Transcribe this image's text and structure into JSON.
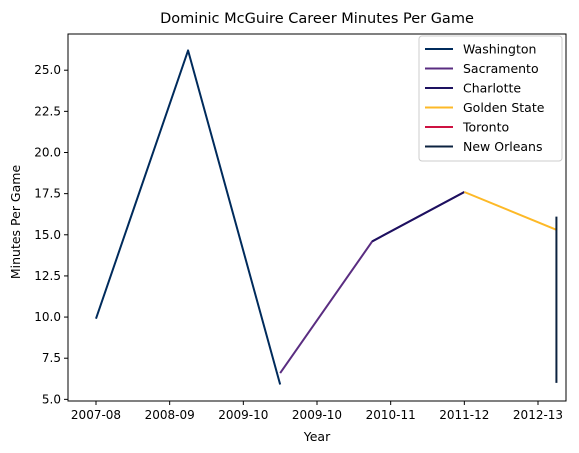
{
  "chart_data": {
    "type": "line",
    "title": "Dominic McGuire Career Minutes Per Game",
    "xlabel": "Year",
    "ylabel": "Minutes Per Game",
    "x_ticks": [
      {
        "label": "2007-08",
        "value": 0
      },
      {
        "label": "2008-09",
        "value": 1
      },
      {
        "label": "2009-10",
        "value": 2
      },
      {
        "label": "2009-10",
        "value": 3
      },
      {
        "label": "2010-11",
        "value": 4
      },
      {
        "label": "2011-12",
        "value": 5
      },
      {
        "label": "2012-13",
        "value": 6
      }
    ],
    "xlim": [
      -0.38,
      6.38
    ],
    "y_ticks": [
      5.0,
      7.5,
      10.0,
      12.5,
      15.0,
      17.5,
      20.0,
      22.5,
      25.0
    ],
    "y_tick_labels": [
      "5.0",
      "7.5",
      "10.0",
      "12.5",
      "15.0",
      "17.5",
      "20.0",
      "22.5",
      "25.0"
    ],
    "ylim": [
      4.9,
      27.2
    ],
    "grid": false,
    "legend_position": "top-right",
    "series": [
      {
        "name": "Washington",
        "color": "#002B5C",
        "points": [
          [
            0,
            9.9
          ],
          [
            1.25,
            26.2
          ],
          [
            2.5,
            5.9
          ]
        ]
      },
      {
        "name": "Sacramento",
        "color": "#5A2D81",
        "points": [
          [
            2.5,
            6.6
          ],
          [
            3.75,
            14.6
          ],
          [
            5.0,
            17.6
          ]
        ]
      },
      {
        "name": "Charlotte",
        "color": "#1D1160",
        "points": [
          [
            3.75,
            14.6
          ],
          [
            5.0,
            17.6
          ]
        ]
      },
      {
        "name": "Golden State",
        "color": "#FDB927",
        "points": [
          [
            5.0,
            17.6
          ],
          [
            6.25,
            15.3
          ]
        ]
      },
      {
        "name": "Toronto",
        "color": "#CE1141",
        "points": [
          [
            6.25,
            16.1
          ],
          [
            6.25,
            16.1
          ]
        ]
      },
      {
        "name": "New Orleans",
        "color": "#0C2340",
        "points": [
          [
            6.25,
            16.1
          ],
          [
            6.25,
            6.0
          ]
        ]
      }
    ]
  }
}
